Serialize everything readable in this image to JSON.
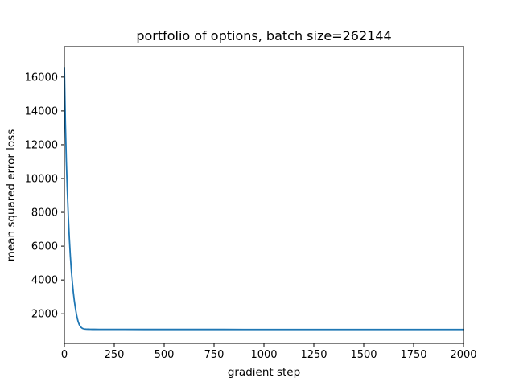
{
  "chart_data": {
    "type": "line",
    "title": "portfolio of options, batch size=262144",
    "xlabel": "gradient step",
    "ylabel": "mean squared error loss",
    "xlim": [
      0,
      2000
    ],
    "ylim": [
      250,
      17800
    ],
    "xticks": [
      0,
      250,
      500,
      750,
      1000,
      1250,
      1500,
      1750,
      2000
    ],
    "yticks": [
      2000,
      4000,
      6000,
      8000,
      10000,
      12000,
      14000,
      16000
    ],
    "grid": false,
    "legend": "none",
    "series": [
      {
        "color": "#1f77b4",
        "x": [
          0,
          5,
          10,
          15,
          20,
          25,
          30,
          35,
          40,
          45,
          50,
          55,
          60,
          65,
          70,
          75,
          80,
          85,
          90,
          95,
          100,
          110,
          120,
          130,
          140,
          150,
          175,
          200,
          250,
          300,
          400,
          500,
          600,
          700,
          800,
          900,
          1000,
          1100,
          1200,
          1300,
          1400,
          1500,
          1600,
          1700,
          1800,
          1900,
          2000
        ],
        "y": [
          16600,
          13300,
          11000,
          9200,
          7700,
          6450,
          5400,
          4550,
          3850,
          3250,
          2750,
          2350,
          2000,
          1720,
          1500,
          1350,
          1250,
          1185,
          1140,
          1115,
          1100,
          1090,
          1085,
          1082,
          1080,
          1080,
          1078,
          1076,
          1075,
          1075,
          1074,
          1074,
          1073,
          1073,
          1073,
          1072,
          1072,
          1072,
          1072,
          1071,
          1071,
          1071,
          1071,
          1070,
          1070,
          1070,
          1070
        ]
      }
    ]
  }
}
